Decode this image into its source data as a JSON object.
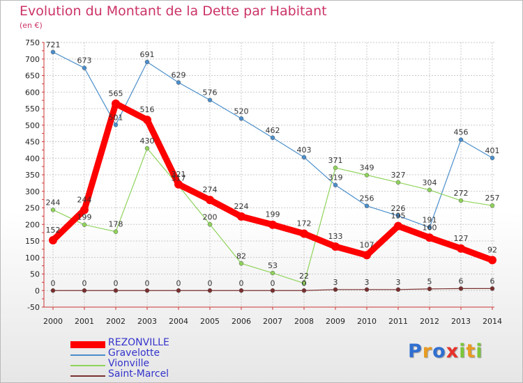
{
  "chart_data": {
    "type": "line",
    "title": "Evolution du Montant de la Dette par Habitant",
    "subtitle": "(en €)",
    "x": [
      "2000",
      "2001",
      "2002",
      "2003",
      "2004",
      "2005",
      "2006",
      "2007",
      "2008",
      "2009",
      "2010",
      "2011",
      "2012",
      "2013",
      "2014"
    ],
    "ylim": [
      -50,
      750
    ],
    "yticks": [
      -50,
      0,
      50,
      100,
      150,
      200,
      250,
      300,
      350,
      400,
      450,
      500,
      550,
      600,
      650,
      700,
      750
    ],
    "grid": true,
    "legend_position": "bottom-left",
    "series": [
      {
        "name": "REZONVILLE",
        "color": "#ff0000",
        "emphasis": true,
        "values": [
          152,
          244,
          565,
          516,
          321,
          274,
          224,
          199,
          172,
          133,
          107,
          195,
          160,
          127,
          92
        ]
      },
      {
        "name": "Gravelotte",
        "color": "#4a8ecb",
        "values": [
          721,
          673,
          501,
          691,
          629,
          576,
          520,
          462,
          403,
          319,
          256,
          226,
          191,
          456,
          401
        ]
      },
      {
        "name": "Vionville",
        "color": "#8fd35a",
        "values": [
          244,
          199,
          178,
          430,
          317,
          200,
          82,
          53,
          22,
          371,
          349,
          327,
          304,
          272,
          257
        ]
      },
      {
        "name": "Saint-Marcel",
        "color": "#7a2e2e",
        "values": [
          0,
          0,
          0,
          0,
          0,
          0,
          0,
          0,
          0,
          3,
          3,
          3,
          5,
          6,
          6
        ]
      }
    ]
  },
  "logo": {
    "letters": [
      "P",
      "r",
      "o",
      "x",
      "i",
      "t",
      "i"
    ],
    "colors": [
      "#2f6fd1",
      "#e89b22",
      "#2f6fd1",
      "#e8322a",
      "#7cc63a",
      "#e89b22",
      "#7cc63a"
    ]
  }
}
